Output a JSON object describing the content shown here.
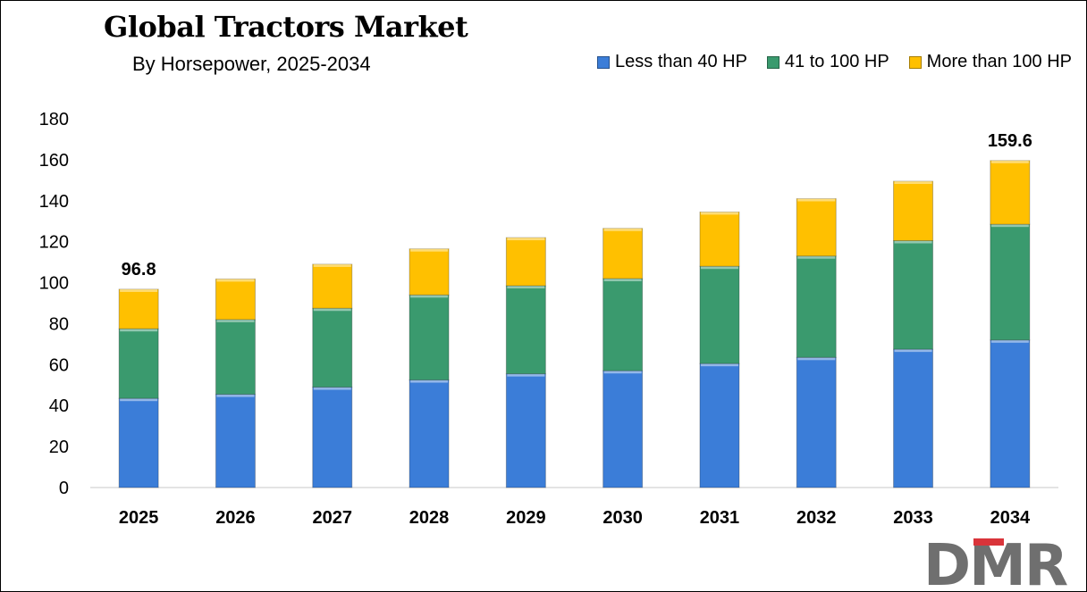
{
  "header": {
    "title": "Global Tractors Market",
    "subtitle": "By Horsepower,  2025-2034"
  },
  "logo": {
    "text": "DMR"
  },
  "chart_data": {
    "type": "bar",
    "stacked": true,
    "categories": [
      "2025",
      "2026",
      "2027",
      "2028",
      "2029",
      "2030",
      "2031",
      "2032",
      "2033",
      "2034"
    ],
    "series": [
      {
        "name": "Less than 40 HP",
        "color": "#3B7DD8",
        "values": [
          43.5,
          45.5,
          49,
          52.5,
          55.5,
          57,
          60.5,
          63.5,
          67.5,
          72
        ]
      },
      {
        "name": "41 to 100 HP",
        "color": "#3A9A6E",
        "values": [
          34,
          36.5,
          38.5,
          41.5,
          43,
          45,
          47.5,
          49.5,
          53,
          56.5
        ]
      },
      {
        "name": "More than 100 HP",
        "color": "#FFC000",
        "values": [
          19.3,
          19.8,
          21.5,
          22.5,
          23.5,
          24.5,
          26.5,
          28,
          29,
          31.1
        ]
      }
    ],
    "data_labels": [
      {
        "category": "2025",
        "text": "96.8"
      },
      {
        "category": "2034",
        "text": "159.6"
      }
    ],
    "ylim": [
      0,
      180
    ],
    "yticks": [
      "0",
      "20",
      "40",
      "60",
      "80",
      "100",
      "120",
      "140",
      "160",
      "180"
    ],
    "grid": false,
    "legend_position": "top-right"
  }
}
